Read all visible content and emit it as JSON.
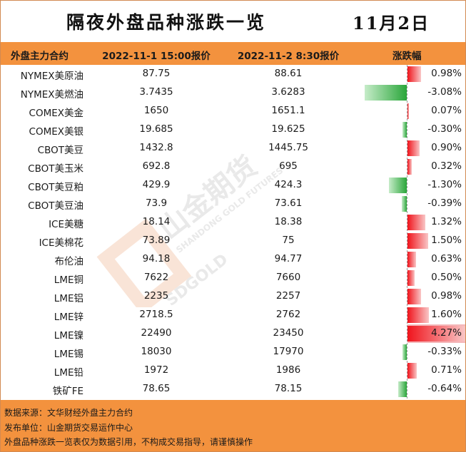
{
  "header": {
    "title": "隔夜外盘品种涨跌一览",
    "date": "11月2日"
  },
  "columns": {
    "name": "外盘主力合约",
    "price1": "2022-11-1 15:00报价",
    "price2": "2022-11-2 8:30报价",
    "change": "涨跌幅"
  },
  "rows": [
    {
      "name": "NYMEX美原油",
      "p1": "87.75",
      "p2": "88.61",
      "pct": "0.98%",
      "value": 0.98
    },
    {
      "name": "NYMEX美燃油",
      "p1": "3.7435",
      "p2": "3.6283",
      "pct": "-3.08%",
      "value": -3.08
    },
    {
      "name": "COMEX美金",
      "p1": "1650",
      "p2": "1651.1",
      "pct": "0.07%",
      "value": 0.07
    },
    {
      "name": "COMEX美银",
      "p1": "19.685",
      "p2": "19.625",
      "pct": "-0.30%",
      "value": -0.3
    },
    {
      "name": "CBOT美豆",
      "p1": "1432.8",
      "p2": "1445.75",
      "pct": "0.90%",
      "value": 0.9
    },
    {
      "name": "CBOT美玉米",
      "p1": "692.8",
      "p2": "695",
      "pct": "0.32%",
      "value": 0.32
    },
    {
      "name": "CBOT美豆粕",
      "p1": "429.9",
      "p2": "424.3",
      "pct": "-1.30%",
      "value": -1.3
    },
    {
      "name": "CBOT美豆油",
      "p1": "73.9",
      "p2": "73.61",
      "pct": "-0.39%",
      "value": -0.39
    },
    {
      "name": "ICE美糖",
      "p1": "18.14",
      "p2": "18.38",
      "pct": "1.32%",
      "value": 1.32
    },
    {
      "name": "ICE美棉花",
      "p1": "73.89",
      "p2": "75",
      "pct": "1.50%",
      "value": 1.5
    },
    {
      "name": "布伦油",
      "p1": "94.18",
      "p2": "94.77",
      "pct": "0.63%",
      "value": 0.63
    },
    {
      "name": "LME铜",
      "p1": "7622",
      "p2": "7660",
      "pct": "0.50%",
      "value": 0.5
    },
    {
      "name": "LME铝",
      "p1": "2235",
      "p2": "2257",
      "pct": "0.98%",
      "value": 0.98
    },
    {
      "name": "LME锌",
      "p1": "2718.5",
      "p2": "2762",
      "pct": "1.60%",
      "value": 1.6
    },
    {
      "name": "LME镍",
      "p1": "22490",
      "p2": "23450",
      "pct": "4.27%",
      "value": 4.27
    },
    {
      "name": "LME锡",
      "p1": "18030",
      "p2": "17970",
      "pct": "-0.33%",
      "value": -0.33
    },
    {
      "name": "LME铅",
      "p1": "1972",
      "p2": "1986",
      "pct": "0.71%",
      "value": 0.71
    },
    {
      "name": "铁矿FE",
      "p1": "78.65",
      "p2": "78.15",
      "pct": "-0.64%",
      "value": -0.64
    }
  ],
  "footer": {
    "source": "数据来源：文华财经外盘主力合约",
    "publisher": "发布单位：山金期货交易运作中心",
    "disclaimer": "外盘品种涨跌一览表仅为数据引用，不构成交易指导，请谨慎操作"
  },
  "watermark": {
    "cn": "山金期货",
    "en": "SHANDONG GOLD FUTURES",
    "logo": "SDGOLD"
  },
  "colors": {
    "accent": "#f3923e",
    "up": "#f0141c",
    "down": "#2aa63a",
    "highlight": "#f4b7b9"
  },
  "icons": {
    "watermark_logo": "sdgold-logo-icon"
  }
}
